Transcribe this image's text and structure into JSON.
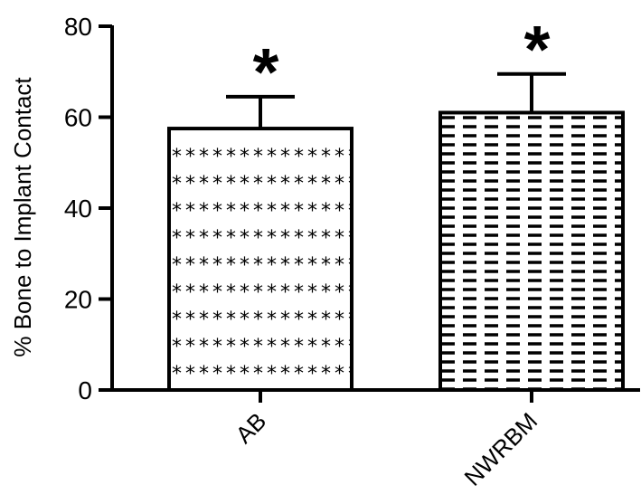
{
  "chart_data": {
    "type": "bar",
    "ylabel": "% Bone to Implant Contact",
    "xlabel": "",
    "ylim": [
      0,
      80
    ],
    "y_ticks": [
      0,
      20,
      40,
      60,
      80
    ],
    "grid": false,
    "categories": [
      "AB",
      "NWRBM"
    ],
    "values": [
      57.5,
      61
    ],
    "error_bars_upper": [
      7,
      8.5
    ],
    "bar_patterns": [
      "asterisk-dots",
      "horizontal-dashes"
    ],
    "annotations": [
      "*",
      "*"
    ],
    "colors": {
      "bar_fill": "#ffffff",
      "stroke": "#000000"
    }
  }
}
